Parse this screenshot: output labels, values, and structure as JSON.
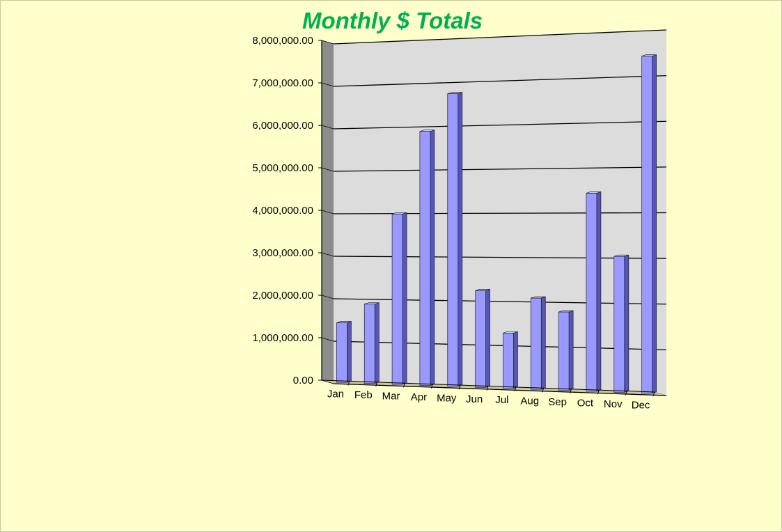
{
  "chart_data": {
    "type": "bar",
    "title": "Monthly $ Totals",
    "categories": [
      "Jan",
      "Feb",
      "Mar",
      "Apr",
      "May",
      "Jun",
      "Jul",
      "Aug",
      "Sep",
      "Oct",
      "Nov",
      "Dec"
    ],
    "values": [
      1400000,
      1850000,
      3950000,
      5850000,
      6700000,
      2200000,
      1250000,
      2050000,
      1750000,
      4400000,
      3000000,
      7400000
    ],
    "ylim": [
      0,
      8000000
    ],
    "yticks": [
      "0.00",
      "1,000,000.00",
      "2,000,000.00",
      "3,000,000.00",
      "4,000,000.00",
      "5,000,000.00",
      "6,000,000.00",
      "7,000,000.00",
      "8,000,000.00"
    ],
    "grid": true,
    "legend": "none",
    "colors": {
      "background": "#ffffcc",
      "bar_front": "#9999ff",
      "bar_side": "#5555bb",
      "bar_top": "#ccccff",
      "wall": "#dcdcdc",
      "side_wall": "#8c8c8c",
      "floor": "#c8c8a0",
      "title": "#00b050"
    }
  }
}
